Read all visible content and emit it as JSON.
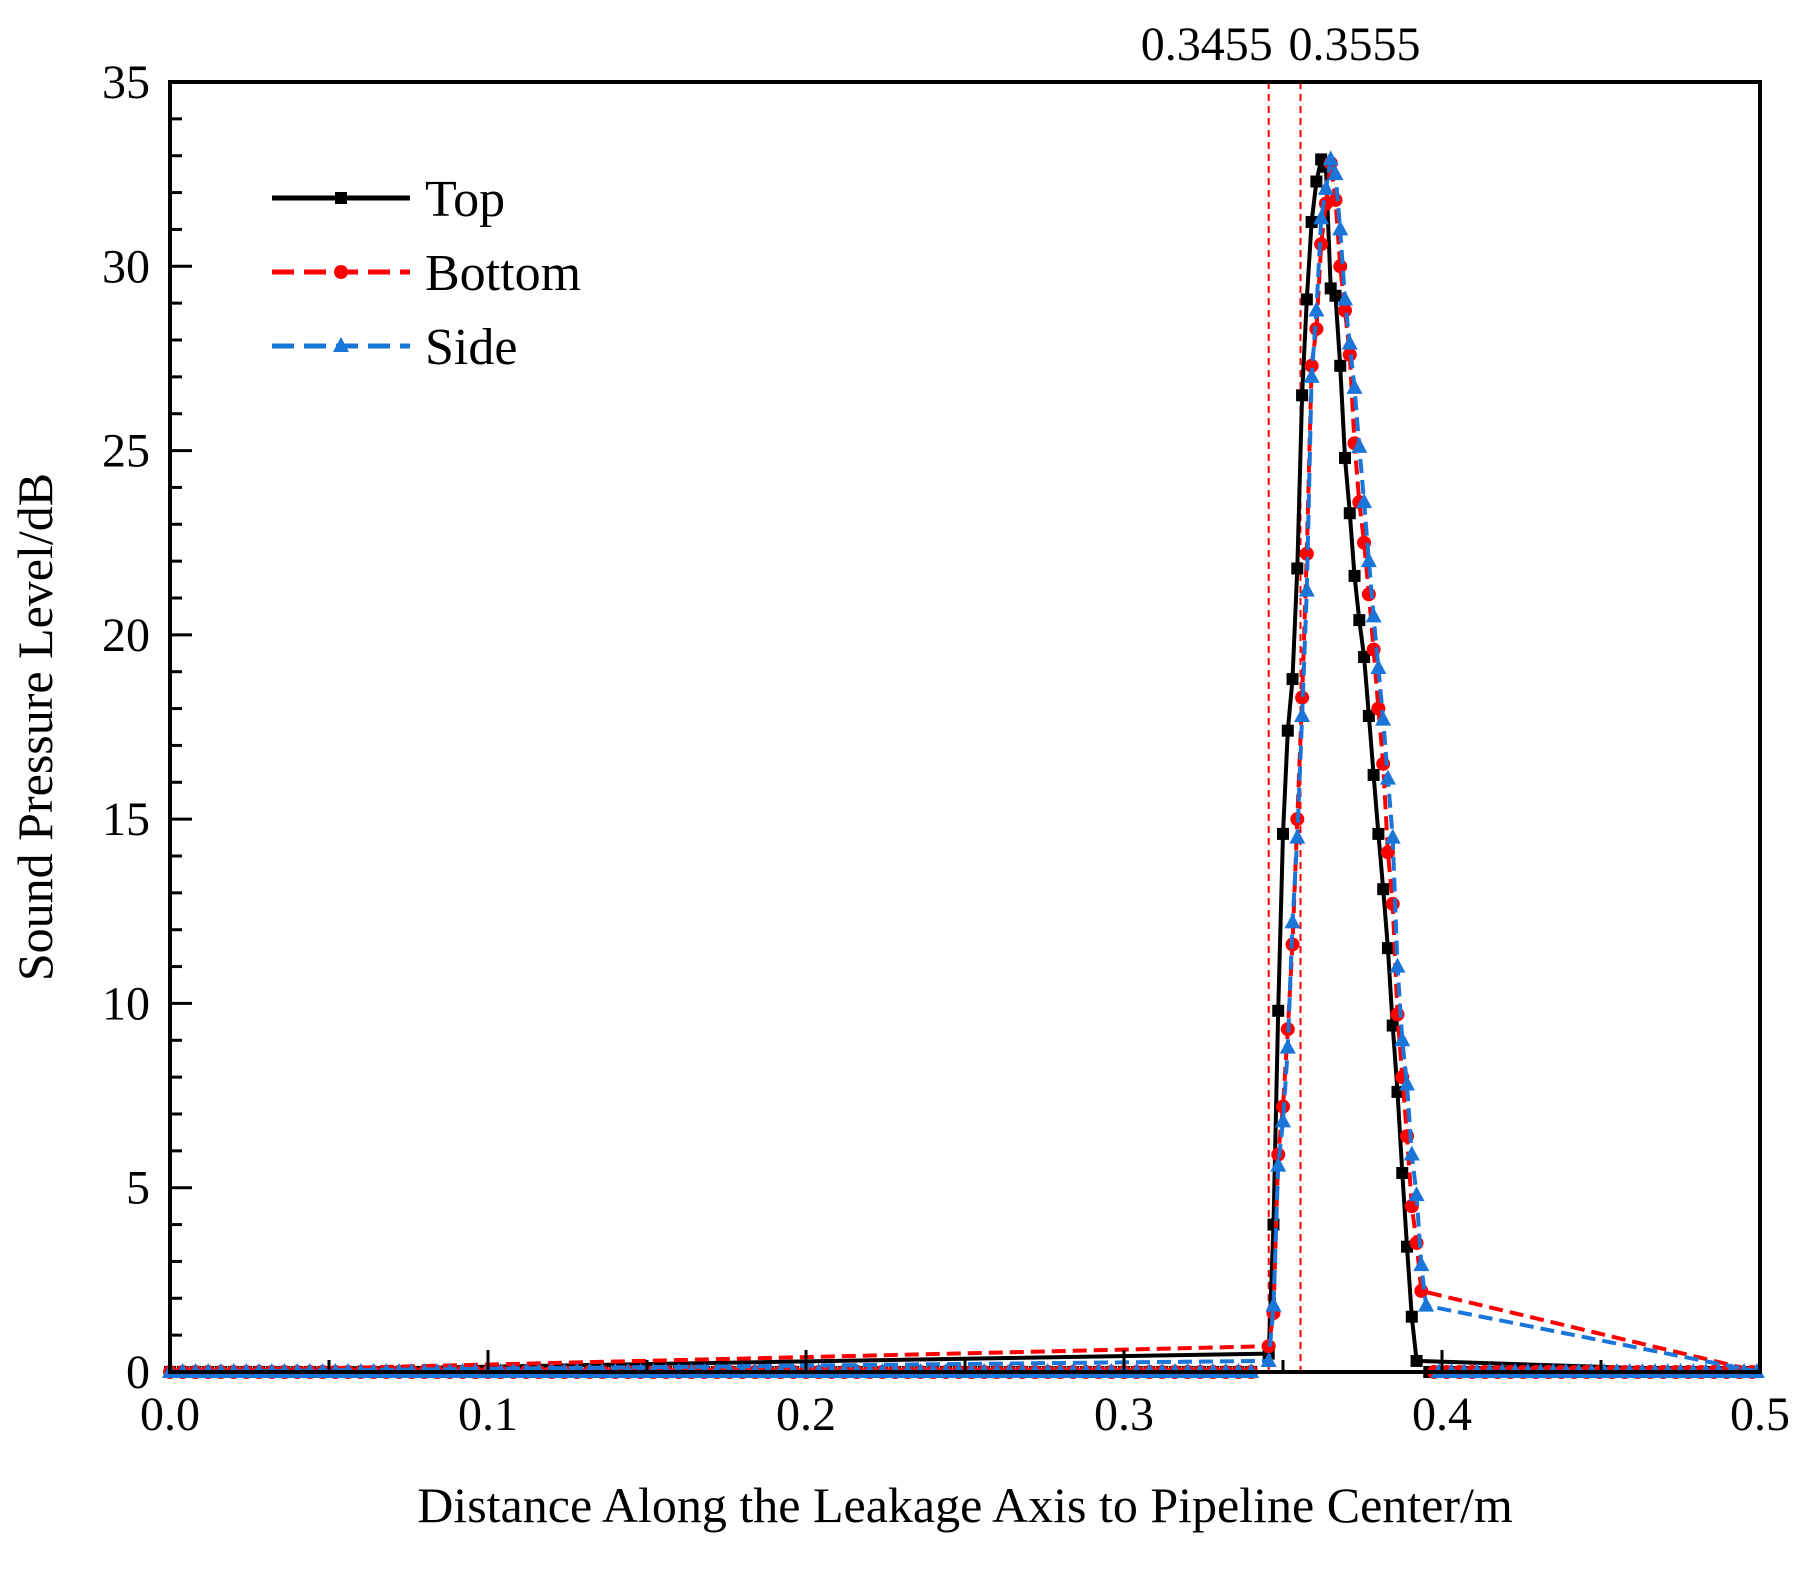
{
  "chart_data": {
    "type": "line",
    "title": "",
    "xlabel": "Distance Along the Leakage Axis to Pipeline Center/m",
    "ylabel": "Sound Pressure Level/dB",
    "xlim": [
      0,
      0.5
    ],
    "ylim": [
      0,
      35
    ],
    "xticks": [
      0.0,
      0.1,
      0.2,
      0.3,
      0.4,
      0.5
    ],
    "xtick_labels": [
      "0.0",
      "0.1",
      "0.2",
      "0.3",
      "0.4",
      "0.5"
    ],
    "yticks": [
      0,
      5,
      10,
      15,
      20,
      25,
      30,
      35
    ],
    "ytick_labels": [
      "0",
      "5",
      "10",
      "15",
      "20",
      "25",
      "30",
      "35"
    ],
    "grid": false,
    "legend_position": "top-left",
    "reference_lines": [
      {
        "x": 0.3455,
        "label": "0.3455",
        "color": "#ff0000"
      },
      {
        "x": 0.3555,
        "label": "0.3555",
        "color": "#ff0000"
      }
    ],
    "series": [
      {
        "name": "Top",
        "color": "#000000",
        "dashed": false,
        "marker": "square",
        "x": [
          0.3455,
          0.347,
          0.3485,
          0.35,
          0.3515,
          0.353,
          0.3545,
          0.356,
          0.3575,
          0.359,
          0.3605,
          0.362,
          0.3635,
          0.365,
          0.3665,
          0.368,
          0.3695,
          0.371,
          0.3725,
          0.374,
          0.3755,
          0.377,
          0.3785,
          0.38,
          0.3815,
          0.383,
          0.3845,
          0.386,
          0.3875,
          0.389,
          0.3905,
          0.392
        ],
        "y": [
          0.5,
          4.0,
          9.8,
          14.6,
          17.4,
          18.8,
          21.8,
          26.5,
          29.1,
          31.2,
          32.3,
          32.9,
          32.7,
          29.4,
          29.2,
          27.3,
          24.8,
          23.3,
          21.6,
          20.4,
          19.4,
          17.8,
          16.2,
          14.6,
          13.1,
          11.5,
          9.4,
          7.6,
          5.4,
          3.4,
          1.5,
          0.3
        ]
      },
      {
        "name": "Bottom",
        "color": "#ff0000",
        "dashed": true,
        "marker": "circle",
        "x": [
          0.3455,
          0.347,
          0.3485,
          0.35,
          0.3515,
          0.353,
          0.3545,
          0.356,
          0.3575,
          0.359,
          0.3605,
          0.362,
          0.3635,
          0.365,
          0.3665,
          0.368,
          0.3695,
          0.371,
          0.3725,
          0.374,
          0.3755,
          0.377,
          0.3785,
          0.38,
          0.3815,
          0.383,
          0.3845,
          0.386,
          0.3875,
          0.389,
          0.3905,
          0.392,
          0.3935
        ],
        "y": [
          0.7,
          1.6,
          5.9,
          7.2,
          9.3,
          11.6,
          15.0,
          18.3,
          22.2,
          27.3,
          28.3,
          30.6,
          31.7,
          32.8,
          31.8,
          30.0,
          28.8,
          27.6,
          25.2,
          23.6,
          22.5,
          21.1,
          19.6,
          18.0,
          16.5,
          14.1,
          12.7,
          9.7,
          8.0,
          6.4,
          4.5,
          3.5,
          2.2
        ]
      },
      {
        "name": "Side",
        "color": "#1a75d9",
        "dashed": true,
        "marker": "triangle",
        "x": [
          0.3455,
          0.347,
          0.3485,
          0.35,
          0.3515,
          0.353,
          0.3545,
          0.356,
          0.3575,
          0.359,
          0.3605,
          0.362,
          0.3635,
          0.365,
          0.3665,
          0.368,
          0.3695,
          0.371,
          0.3725,
          0.374,
          0.3755,
          0.377,
          0.3785,
          0.38,
          0.3815,
          0.383,
          0.3845,
          0.386,
          0.3875,
          0.389,
          0.3905,
          0.392,
          0.3935,
          0.395
        ],
        "y": [
          0.3,
          1.8,
          5.6,
          6.8,
          8.8,
          12.2,
          14.5,
          17.8,
          21.2,
          27.0,
          28.8,
          31.3,
          32.1,
          32.9,
          32.5,
          31.0,
          29.1,
          27.9,
          26.7,
          25.1,
          23.6,
          22.0,
          20.5,
          19.1,
          17.7,
          16.1,
          14.5,
          11.0,
          9.0,
          7.8,
          5.9,
          4.8,
          2.9,
          1.8
        ]
      }
    ]
  }
}
